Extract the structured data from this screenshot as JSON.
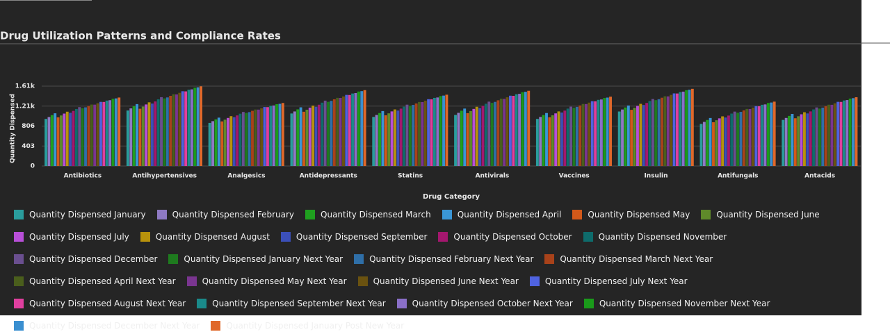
{
  "chart_data": {
    "type": "bar",
    "title": "Drug Utilization Patterns and Compliance Rates",
    "x_label": "Drug Category",
    "y_label": "Quantity Dispensed",
    "categories": [
      "Antibiotics",
      "Antihypertensives",
      "Analgesics",
      "Antidepressants",
      "Statins",
      "Antivirals",
      "Vaccines",
      "Insulin",
      "Antifungals",
      "Antacids"
    ],
    "ylim": [
      0,
      1612
    ],
    "yticks": [
      0,
      403,
      806,
      {
        "value": 1209,
        "label": "1.21k"
      },
      {
        "value": 1612,
        "label": "1.61k"
      }
    ],
    "grid": true,
    "series": [
      {
        "name": "Quantity Dispensed January",
        "color": "#2a9d9d",
        "values": [
          950,
          1120,
          870,
          1060,
          990,
          1030,
          950,
          1100,
          850,
          930
        ]
      },
      {
        "name": "Quantity Dispensed February",
        "color": "#8f7ac4",
        "values": [
          988,
          1163,
          905,
          1101,
          1030,
          1073,
          990,
          1140,
          890,
          970
        ]
      },
      {
        "name": "Quantity Dispensed March",
        "color": "#1fa01f",
        "values": [
          1026,
          1206,
          941,
          1143,
          1069,
          1116,
          1029,
          1181,
          929,
          1011
        ]
      },
      {
        "name": "Quantity Dispensed April",
        "color": "#3a96d6",
        "values": [
          1064,
          1249,
          976,
          1184,
          1109,
          1159,
          1069,
          1221,
          969,
          1051
        ]
      },
      {
        "name": "Quantity Dispensed May",
        "color": "#d2591a",
        "values": [
          982,
          1156,
          900,
          1095,
          1023,
          1066,
          983,
          1134,
          883,
          964
        ]
      },
      {
        "name": "Quantity Dispensed June",
        "color": "#5f8a2a",
        "values": [
          1020,
          1199,
          935,
          1136,
          1063,
          1109,
          1023,
          1174,
          923,
          1004
        ]
      },
      {
        "name": "Quantity Dispensed July",
        "color": "#b84fd8",
        "values": [
          1058,
          1242,
          970,
          1178,
          1102,
          1152,
          1062,
          1214,
          962,
          1044
        ]
      },
      {
        "name": "Quantity Dispensed August",
        "color": "#b8920c",
        "values": [
          1096,
          1285,
          1006,
          1219,
          1142,
          1195,
          1102,
          1255,
          1002,
          1085
        ]
      },
      {
        "name": "Quantity Dispensed September",
        "color": "#3b4fb8",
        "values": [
          1074,
          1260,
          985,
          1195,
          1119,
          1170,
          1079,
          1231,
          979,
          1061
        ]
      },
      {
        "name": "Quantity Dispensed October",
        "color": "#a3176e",
        "values": [
          1112,
          1303,
          1021,
          1237,
          1158,
          1213,
          1118,
          1272,
          1018,
          1102
        ]
      },
      {
        "name": "Quantity Dispensed November",
        "color": "#0e6b6b",
        "values": [
          1150,
          1346,
          1056,
          1278,
          1198,
          1256,
          1158,
          1312,
          1058,
          1142
        ]
      },
      {
        "name": "Quantity Dispensed December",
        "color": "#6a4f8f",
        "values": [
          1188,
          1389,
          1091,
          1319,
          1238,
          1299,
          1198,
          1352,
          1098,
          1182
        ]
      },
      {
        "name": "Quantity Dispensed January Next Year",
        "color": "#1e7a1e",
        "values": [
          1166,
          1364,
          1071,
          1295,
          1215,
          1274,
          1175,
          1329,
          1075,
          1159
        ]
      },
      {
        "name": "Quantity Dispensed February Next Year",
        "color": "#2f6fa8",
        "values": [
          1184,
          1384,
          1088,
          1315,
          1233,
          1294,
          1193,
          1348,
          1093,
          1178
        ]
      },
      {
        "name": "Quantity Dispensed March Next Year",
        "color": "#a8421a",
        "values": [
          1212,
          1416,
          1114,
          1346,
          1262,
          1326,
          1222,
          1378,
          1122,
          1208
        ]
      },
      {
        "name": "Quantity Dispensed April Next Year",
        "color": "#4a5e1c",
        "values": [
          1240,
          1448,
          1140,
          1376,
          1292,
          1358,
          1252,
          1407,
          1152,
          1237
        ]
      },
      {
        "name": "Quantity Dispensed May Next Year",
        "color": "#7a3590",
        "values": [
          1238,
          1445,
          1138,
          1374,
          1290,
          1355,
          1250,
          1405,
          1150,
          1235
        ]
      },
      {
        "name": "Quantity Dispensed June Next Year",
        "color": "#6a5210",
        "values": [
          1266,
          1477,
          1164,
          1404,
          1319,
          1387,
          1279,
          1435,
          1179,
          1265
        ]
      },
      {
        "name": "Quantity Dispensed July Next Year",
        "color": "#4f63e0",
        "values": [
          1294,
          1509,
          1190,
          1435,
          1348,
          1419,
          1308,
          1465,
          1208,
          1295
        ]
      },
      {
        "name": "Quantity Dispensed August Next Year",
        "color": "#e03f9f",
        "values": [
          1292,
          1506,
          1188,
          1433,
          1346,
          1416,
          1306,
          1463,
          1206,
          1293
        ]
      },
      {
        "name": "Quantity Dispensed September Next Year",
        "color": "#1a8a8a",
        "values": [
          1320,
          1538,
          1214,
          1463,
          1375,
          1448,
          1335,
          1492,
          1235,
          1322
        ]
      },
      {
        "name": "Quantity Dispensed October Next Year",
        "color": "#8a6fc8",
        "values": [
          1328,
          1547,
          1222,
          1472,
          1383,
          1457,
          1343,
          1501,
          1243,
          1331
        ]
      },
      {
        "name": "Quantity Dispensed November Next Year",
        "color": "#1a9a1a",
        "values": [
          1356,
          1579,
          1248,
          1503,
          1412,
          1489,
          1372,
          1530,
          1272,
          1360
        ]
      },
      {
        "name": "Quantity Dispensed December Next Year",
        "color": "#3a8fd0",
        "values": [
          1364,
          1588,
          1255,
          1511,
          1421,
          1498,
          1381,
          1539,
          1281,
          1369
        ]
      },
      {
        "name": "Quantity Dispensed January Post New Year",
        "color": "#e0682a",
        "values": [
          1382,
          1608,
          1272,
          1531,
          1439,
          1518,
          1399,
          1558,
          1299,
          1388
        ]
      }
    ]
  }
}
